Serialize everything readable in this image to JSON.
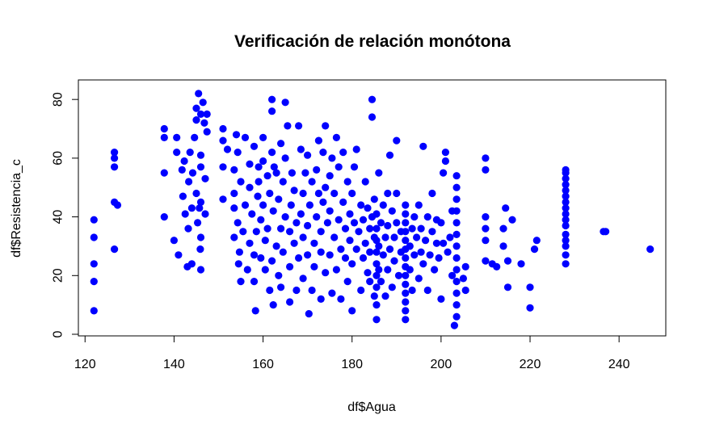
{
  "chart_data": {
    "type": "scatter",
    "title": "Verificación de relación monótona",
    "xlabel": "df$Agua",
    "ylabel": "df$Resistencia_c",
    "xlim": [
      118.5,
      250.5
    ],
    "ylim": [
      0,
      85
    ],
    "xticks": [
      "120",
      "140",
      "160",
      "180",
      "200",
      "220",
      "240"
    ],
    "yticks": [
      "0",
      "20",
      "40",
      "60",
      "80"
    ],
    "grid": false,
    "legend": "none",
    "point_color": "#0000ff",
    "series": [
      {
        "points": [
          [
            122,
            8
          ],
          [
            122,
            18
          ],
          [
            122,
            24
          ],
          [
            122,
            33
          ],
          [
            122,
            39
          ],
          [
            126.6,
            29
          ],
          [
            126.6,
            45
          ],
          [
            126.6,
            57
          ],
          [
            126.6,
            60
          ],
          [
            126.6,
            62
          ],
          [
            127.3,
            44
          ],
          [
            137.8,
            40
          ],
          [
            137.8,
            55
          ],
          [
            137.8,
            67
          ],
          [
            137.8,
            70
          ],
          [
            140,
            32
          ],
          [
            140.6,
            62
          ],
          [
            140.6,
            67
          ],
          [
            141,
            27
          ],
          [
            141.8,
            56
          ],
          [
            142,
            47
          ],
          [
            142.3,
            59
          ],
          [
            142.5,
            41
          ],
          [
            143,
            23
          ],
          [
            143.2,
            36
          ],
          [
            143.3,
            52
          ],
          [
            143.6,
            62
          ],
          [
            144,
            43
          ],
          [
            144,
            24
          ],
          [
            144.2,
            55
          ],
          [
            144.6,
            67
          ],
          [
            145,
            48
          ],
          [
            145,
            73
          ],
          [
            145,
            77
          ],
          [
            145.3,
            38
          ],
          [
            145.5,
            82
          ],
          [
            145.7,
            43
          ],
          [
            145.9,
            29
          ],
          [
            146,
            22
          ],
          [
            146,
            33
          ],
          [
            146,
            45
          ],
          [
            146,
            57
          ],
          [
            146,
            61
          ],
          [
            146,
            75
          ],
          [
            146.5,
            79
          ],
          [
            146.8,
            72
          ],
          [
            147,
            41
          ],
          [
            147,
            53
          ],
          [
            147.4,
            69
          ],
          [
            147.4,
            75
          ],
          [
            151,
            70
          ],
          [
            151,
            66
          ],
          [
            151,
            57
          ],
          [
            151,
            46
          ],
          [
            152,
            63
          ],
          [
            153.5,
            33
          ],
          [
            153.5,
            43
          ],
          [
            153.5,
            48
          ],
          [
            153.5,
            56
          ],
          [
            154,
            68
          ],
          [
            154.3,
            38
          ],
          [
            154.3,
            62
          ],
          [
            154.5,
            24
          ],
          [
            154.7,
            28
          ],
          [
            155,
            18
          ],
          [
            155,
            52
          ],
          [
            155.5,
            35
          ],
          [
            156,
            44
          ],
          [
            156,
            67
          ],
          [
            156.5,
            22
          ],
          [
            157,
            31
          ],
          [
            157,
            58
          ],
          [
            157,
            50
          ],
          [
            157.5,
            41
          ],
          [
            158,
            27
          ],
          [
            158,
            18
          ],
          [
            158,
            64
          ],
          [
            158.3,
            8
          ],
          [
            158.5,
            35
          ],
          [
            158.8,
            47
          ],
          [
            159,
            57
          ],
          [
            159,
            52
          ],
          [
            159.5,
            26
          ],
          [
            159.5,
            39
          ],
          [
            160,
            44
          ],
          [
            160,
            59
          ],
          [
            160,
            67
          ],
          [
            160.5,
            22
          ],
          [
            160.5,
            32
          ],
          [
            161,
            54
          ],
          [
            161,
            36
          ],
          [
            161.5,
            15
          ],
          [
            161.5,
            48
          ],
          [
            162,
            25
          ],
          [
            162,
            62
          ],
          [
            162,
            76
          ],
          [
            162,
            80
          ],
          [
            162.3,
            10
          ],
          [
            162.3,
            42
          ],
          [
            162.5,
            57
          ],
          [
            163,
            30
          ],
          [
            163,
            55
          ],
          [
            163.5,
            20
          ],
          [
            163.5,
            46
          ],
          [
            164,
            36
          ],
          [
            164,
            65
          ],
          [
            164,
            16
          ],
          [
            164.5,
            28
          ],
          [
            164.5,
            52
          ],
          [
            165,
            40
          ],
          [
            165,
            60
          ],
          [
            165,
            79
          ],
          [
            165.5,
            71
          ],
          [
            166,
            11
          ],
          [
            166,
            23
          ],
          [
            166,
            35
          ],
          [
            166.3,
            44
          ],
          [
            166.5,
            55
          ],
          [
            167,
            31
          ],
          [
            167,
            49
          ],
          [
            167.5,
            15
          ],
          [
            167.5,
            38
          ],
          [
            168,
            26
          ],
          [
            168,
            71
          ],
          [
            168.5,
            63
          ],
          [
            168.5,
            41
          ],
          [
            169,
            19
          ],
          [
            169,
            33
          ],
          [
            169,
            48
          ],
          [
            169.5,
            55
          ],
          [
            170,
            27
          ],
          [
            170,
            37
          ],
          [
            170,
            61
          ],
          [
            170.3,
            7
          ],
          [
            170.5,
            44
          ],
          [
            171,
            15
          ],
          [
            171,
            52
          ],
          [
            171.5,
            31
          ],
          [
            171.5,
            23
          ],
          [
            172,
            40
          ],
          [
            172,
            56
          ],
          [
            172.5,
            66
          ],
          [
            172.5,
            48
          ],
          [
            173,
            12
          ],
          [
            173,
            28
          ],
          [
            173,
            35
          ],
          [
            173.5,
            45
          ],
          [
            173.5,
            62
          ],
          [
            174,
            21
          ],
          [
            174,
            50
          ],
          [
            174,
            71
          ],
          [
            174.5,
            38
          ],
          [
            175,
            27
          ],
          [
            175,
            42
          ],
          [
            175,
            54
          ],
          [
            175.5,
            14
          ],
          [
            175.5,
            60
          ],
          [
            176,
            33
          ],
          [
            176,
            48
          ],
          [
            176.5,
            67
          ],
          [
            176.5,
            22
          ],
          [
            177,
            39
          ],
          [
            177,
            57
          ],
          [
            177.5,
            29
          ],
          [
            177.5,
            12
          ],
          [
            178,
            45
          ],
          [
            178,
            62
          ],
          [
            178.5,
            36
          ],
          [
            178.5,
            26
          ],
          [
            179,
            52
          ],
          [
            179,
            18
          ],
          [
            179.5,
            32
          ],
          [
            179.5,
            41
          ],
          [
            180,
            48
          ],
          [
            180,
            8
          ],
          [
            180,
            24
          ],
          [
            180.5,
            38
          ],
          [
            180.5,
            57
          ],
          [
            181,
            29
          ],
          [
            181,
            63
          ],
          [
            181.5,
            35
          ],
          [
            182,
            44
          ],
          [
            182,
            15
          ],
          [
            182.5,
            26
          ],
          [
            182.5,
            39
          ],
          [
            183,
            52
          ],
          [
            183,
            31
          ],
          [
            183.5,
            21
          ],
          [
            183.5,
            43
          ],
          [
            184,
            36
          ],
          [
            184,
            28
          ],
          [
            184,
            18
          ],
          [
            184.5,
            40
          ],
          [
            184.5,
            74
          ],
          [
            184.5,
            80
          ],
          [
            185,
            13
          ],
          [
            185,
            33
          ],
          [
            185,
            46
          ],
          [
            185.5,
            5
          ],
          [
            185.5,
            10
          ],
          [
            185.5,
            16
          ],
          [
            185.5,
            20
          ],
          [
            185.5,
            24
          ],
          [
            185.5,
            28
          ],
          [
            185.5,
            32
          ],
          [
            185.5,
            36
          ],
          [
            185.5,
            41
          ],
          [
            186,
            55
          ],
          [
            186,
            22
          ],
          [
            186,
            30
          ],
          [
            186.5,
            18
          ],
          [
            186.5,
            38
          ],
          [
            187,
            27
          ],
          [
            187,
            44
          ],
          [
            187.5,
            33
          ],
          [
            187.5,
            13
          ],
          [
            188,
            48
          ],
          [
            188,
            22
          ],
          [
            188,
            37
          ],
          [
            188.5,
            29
          ],
          [
            188.5,
            61
          ],
          [
            189,
            42
          ],
          [
            189,
            16
          ],
          [
            189.5,
            33
          ],
          [
            189.5,
            25
          ],
          [
            190,
            38
          ],
          [
            190,
            66
          ],
          [
            190,
            48
          ],
          [
            190.5,
            20
          ],
          [
            191,
            28
          ],
          [
            191,
            35
          ],
          [
            192,
            5
          ],
          [
            192,
            8
          ],
          [
            192,
            11
          ],
          [
            192,
            14
          ],
          [
            192,
            17
          ],
          [
            192,
            20
          ],
          [
            192,
            23
          ],
          [
            192,
            26
          ],
          [
            192,
            29
          ],
          [
            192,
            32
          ],
          [
            192,
            35
          ],
          [
            192,
            38
          ],
          [
            192,
            41
          ],
          [
            192,
            44
          ],
          [
            193,
            30
          ],
          [
            193,
            22
          ],
          [
            193.5,
            36
          ],
          [
            193.5,
            15
          ],
          [
            194,
            27
          ],
          [
            194,
            40
          ],
          [
            194.5,
            33
          ],
          [
            195,
            19
          ],
          [
            195,
            44
          ],
          [
            195.5,
            28
          ],
          [
            195.5,
            36
          ],
          [
            196,
            24
          ],
          [
            196,
            64
          ],
          [
            196.5,
            32
          ],
          [
            197,
            40
          ],
          [
            197,
            15
          ],
          [
            197.5,
            27
          ],
          [
            198,
            48
          ],
          [
            198,
            35
          ],
          [
            198.5,
            22
          ],
          [
            199,
            31
          ],
          [
            199,
            39
          ],
          [
            199.5,
            26
          ],
          [
            200,
            38
          ],
          [
            200,
            12
          ],
          [
            200.5,
            55
          ],
          [
            200.5,
            31
          ],
          [
            201,
            59
          ],
          [
            201,
            62
          ],
          [
            201.5,
            28
          ],
          [
            202,
            33
          ],
          [
            202.5,
            20
          ],
          [
            202.5,
            42
          ],
          [
            203,
            3
          ],
          [
            203.5,
            6
          ],
          [
            203.5,
            10
          ],
          [
            203.5,
            14
          ],
          [
            203.5,
            18
          ],
          [
            203.5,
            22
          ],
          [
            203.5,
            26
          ],
          [
            203.5,
            30
          ],
          [
            203.5,
            34
          ],
          [
            203.5,
            38
          ],
          [
            203.5,
            42
          ],
          [
            203.5,
            46
          ],
          [
            203.5,
            50
          ],
          [
            203.5,
            54
          ],
          [
            205,
            19
          ],
          [
            205.5,
            23
          ],
          [
            205.5,
            15
          ],
          [
            210,
            25
          ],
          [
            210,
            32
          ],
          [
            210,
            36
          ],
          [
            210,
            40
          ],
          [
            210,
            56
          ],
          [
            210,
            60
          ],
          [
            211.5,
            24
          ],
          [
            212.5,
            23
          ],
          [
            214,
            36
          ],
          [
            214,
            30
          ],
          [
            214.5,
            43
          ],
          [
            215,
            16
          ],
          [
            215,
            25
          ],
          [
            216,
            39
          ],
          [
            218,
            24
          ],
          [
            220,
            9
          ],
          [
            220,
            16
          ],
          [
            221,
            29
          ],
          [
            221.5,
            32
          ],
          [
            228,
            24
          ],
          [
            228,
            27
          ],
          [
            228,
            30
          ],
          [
            228,
            32
          ],
          [
            228,
            34
          ],
          [
            228,
            37
          ],
          [
            228,
            39
          ],
          [
            228,
            41
          ],
          [
            228,
            43
          ],
          [
            228,
            45
          ],
          [
            228,
            47
          ],
          [
            228,
            49
          ],
          [
            228,
            51
          ],
          [
            228,
            53
          ],
          [
            228,
            55
          ],
          [
            228,
            56
          ],
          [
            236.5,
            35
          ],
          [
            237,
            35
          ],
          [
            247,
            29
          ]
        ]
      }
    ]
  }
}
